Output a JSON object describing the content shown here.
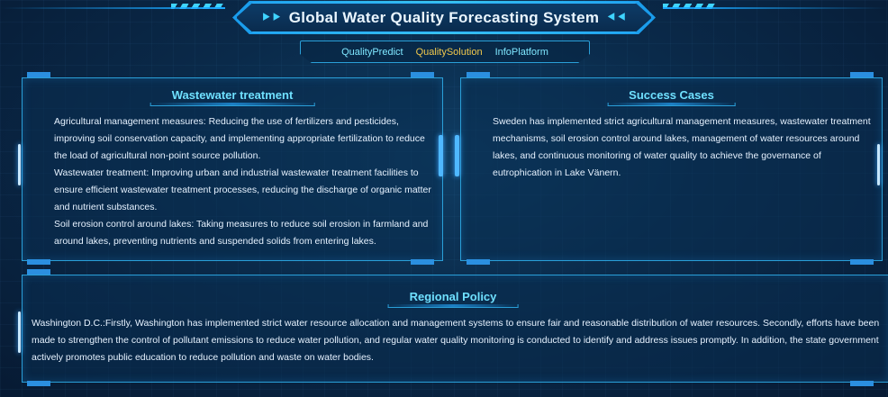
{
  "header": {
    "title": "Global Water Quality Forecasting System",
    "left_arrow": "⯈⯈",
    "right_arrow": "⯇⯇"
  },
  "nav": {
    "items": [
      "QualityPredict",
      "QualitySolution",
      "InfoPlatform"
    ],
    "active": "QualitySolution"
  },
  "wastewater": {
    "title": "Wastewater treatment",
    "paragraphs": [
      "Agricultural management measures: Reducing the use of fertilizers and pesticides, improving soil conservation capacity, and implementing appropriate fertilization to reduce the load of agricultural non-point source pollution.",
      "Wastewater treatment: Improving urban and industrial wastewater treatment facilities to ensure efficient wastewater treatment processes, reducing the discharge of organic matter and nutrient substances.",
      "Soil erosion control around lakes: Taking measures to reduce soil erosion in farmland and around lakes, preventing nutrients and suspended solids from entering lakes."
    ]
  },
  "success": {
    "title": "Success Cases",
    "text": "Sweden has implemented strict agricultural management measures, wastewater treatment mechanisms, soil erosion control around lakes, management of water resources around lakes, and continuous monitoring of water quality to achieve the governance of eutrophication in Lake Vänern."
  },
  "policy": {
    "title": "Regional Policy",
    "text": "Washington D.C.:Firstly, Washington has implemented strict water resource allocation and management systems to ensure fair and reasonable distribution of water resources. Secondly, efforts have been made to strengthen the control of pollutant emissions to reduce water pollution, and regular water quality monitoring is conducted to identify and address issues promptly. In addition, the state government actively promotes public education to reduce pollution and waste on water bodies."
  },
  "colors": {
    "accent": "#3fd4ff",
    "nav_active": "#f2c94c",
    "panel_border": "#2a9fd8"
  }
}
